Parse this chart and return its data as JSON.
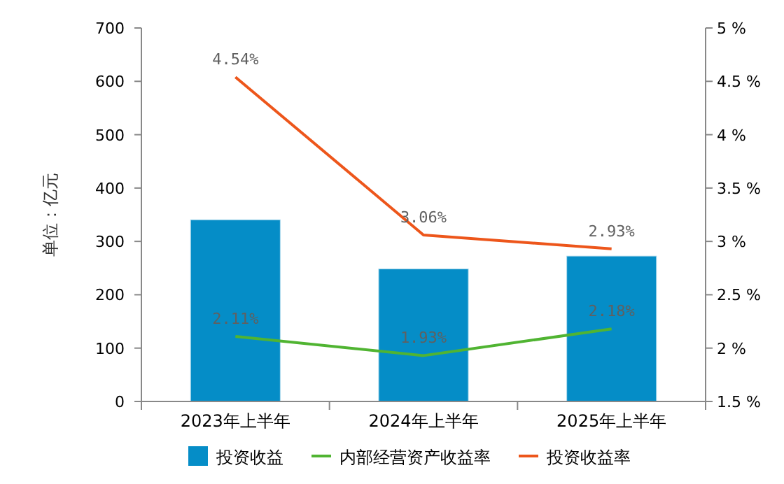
{
  "chart_data": {
    "type": "bar",
    "ylabel": "单位：亿元",
    "categories": [
      "2023年上半年",
      "2024年上半年",
      "2025年上半年"
    ],
    "series": [
      {
        "name": "投资收益",
        "color": "#058dc7",
        "values": [
          341,
          249,
          273
        ]
      },
      {
        "name": "内部经营资产收益率",
        "type": "line",
        "axis": "y2",
        "color": "#50b432",
        "values": [
          2.11,
          1.93,
          2.18
        ],
        "value_labels": [
          "2.11%",
          "1.93%",
          "2.18%"
        ]
      },
      {
        "name": "投资收益率",
        "type": "line",
        "axis": "y2",
        "color": "#ed561b",
        "values": [
          4.54,
          3.06,
          2.93
        ],
        "value_labels": [
          "4.54%",
          "3.06%",
          "2.93%"
        ]
      }
    ],
    "ylim": [
      0,
      700
    ],
    "yticks": [
      0,
      100,
      200,
      300,
      400,
      500,
      600,
      700
    ],
    "y2lim": [
      1.5,
      5
    ],
    "y2ticks": [
      {
        "value": 1.5,
        "label": "1.5 %"
      },
      {
        "value": 2,
        "label": "2 %"
      },
      {
        "value": 2.5,
        "label": "2.5 %"
      },
      {
        "value": 3,
        "label": "3 %"
      },
      {
        "value": 3.5,
        "label": "3.5 %"
      },
      {
        "value": 4,
        "label": "4 %"
      },
      {
        "value": 4.5,
        "label": "4.5 %"
      },
      {
        "value": 5,
        "label": "5 %"
      }
    ],
    "legend": "bottom",
    "grid": false
  }
}
